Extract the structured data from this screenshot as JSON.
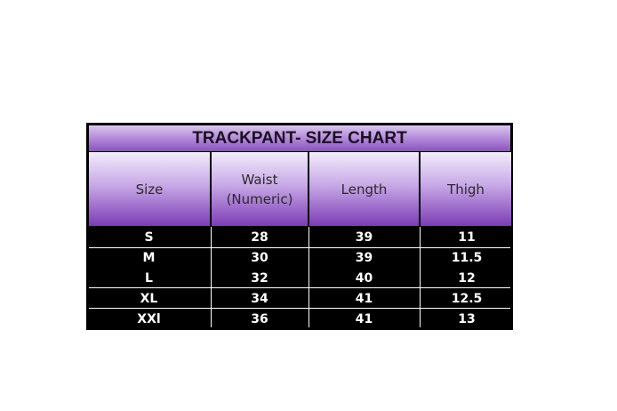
{
  "title": "TRACKPANT- SIZE CHART",
  "columns": [
    "Size",
    "Waist (Numeric)",
    "Length",
    "Thigh"
  ],
  "rows": [
    [
      "S",
      "28",
      "39",
      "11"
    ],
    [
      "M",
      "30",
      "39",
      "11.5"
    ],
    [
      "L",
      "32",
      "40",
      "12"
    ],
    [
      "XL",
      "34",
      "41",
      "12.5"
    ],
    [
      "XXl",
      "36",
      "41",
      "13"
    ]
  ],
  "colors": {
    "header_purple": "#7c3cb5",
    "body": "#000000"
  }
}
